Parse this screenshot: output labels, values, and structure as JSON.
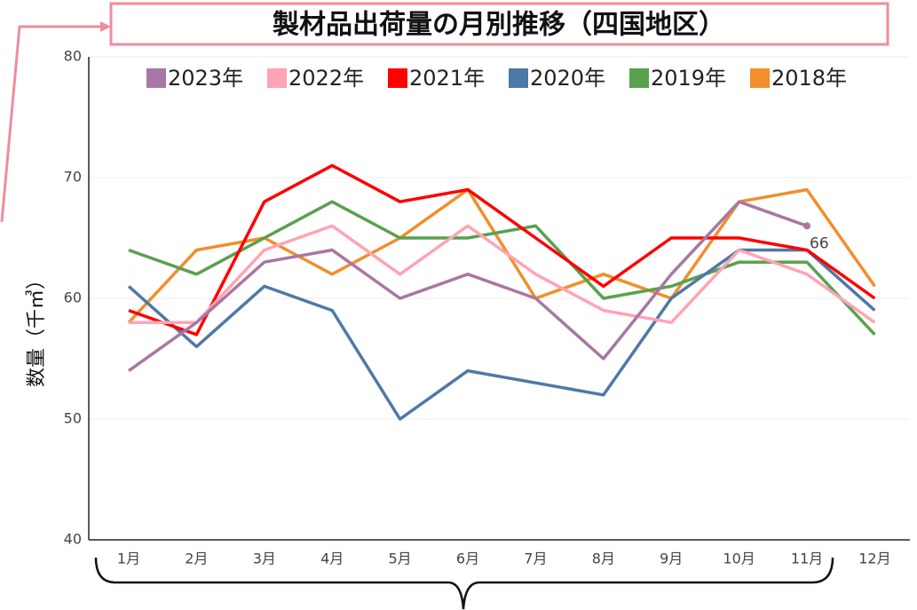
{
  "chart_data": {
    "type": "line",
    "title": "製材品出荷量の月別推移（四国地区）",
    "y_label": "数量（千㎥）",
    "categories": [
      "1月",
      "2月",
      "3月",
      "4月",
      "5月",
      "6月",
      "7月",
      "8月",
      "9月",
      "10月",
      "11月",
      "12月"
    ],
    "series": [
      {
        "name": "2023年",
        "color": "#a877a4",
        "values": [
          54,
          58,
          63,
          64,
          60,
          62,
          60,
          55,
          62,
          68,
          66,
          null
        ]
      },
      {
        "name": "2022年",
        "color": "#ffa4b4",
        "values": [
          58,
          58,
          64,
          66,
          62,
          66,
          62,
          59,
          58,
          64,
          62,
          58
        ]
      },
      {
        "name": "2021年",
        "color": "#ff0000",
        "values": [
          59,
          57,
          68,
          71,
          68,
          69,
          65,
          61,
          65,
          65,
          64,
          60
        ]
      },
      {
        "name": "2020年",
        "color": "#4e79a7",
        "values": [
          61,
          56,
          61,
          59,
          50,
          54,
          53,
          52,
          60,
          64,
          64,
          59
        ]
      },
      {
        "name": "2019年",
        "color": "#59a14f",
        "values": [
          64,
          62,
          65,
          68,
          65,
          65,
          66,
          60,
          61,
          63,
          63,
          57
        ]
      },
      {
        "name": "2018年",
        "color": "#f28e2b",
        "values": [
          58,
          64,
          65,
          62,
          65,
          69,
          60,
          62,
          60,
          68,
          69,
          61
        ]
      }
    ],
    "ylim": [
      40,
      80
    ],
    "yticks": [
      40,
      50,
      60,
      70,
      80
    ],
    "grid": true,
    "legend": "top"
  }
}
